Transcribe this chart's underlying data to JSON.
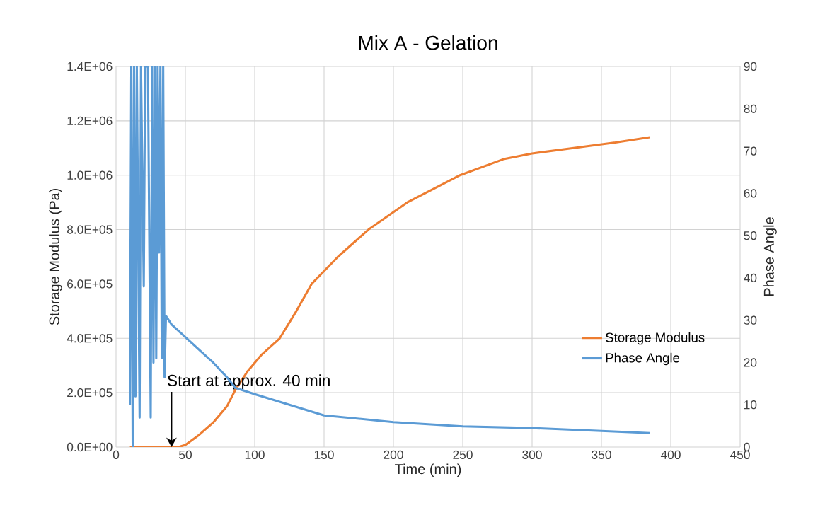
{
  "chart_data": {
    "type": "line",
    "title": "Mix A - Gelation",
    "xlabel": "Time (min)",
    "ylabel": "Storage Modulus (Pa)",
    "y2label": "Phase Angle",
    "xlim": [
      0,
      450
    ],
    "xticks": [
      0,
      50,
      100,
      150,
      200,
      250,
      300,
      350,
      400,
      450
    ],
    "ylim": [
      0,
      1400000
    ],
    "yticks": [
      {
        "value": 0,
        "label": "0.0E+00"
      },
      {
        "value": 200000,
        "label": "2.0E+05"
      },
      {
        "value": 400000,
        "label": "4.0E+05"
      },
      {
        "value": 600000,
        "label": "6.0E+05"
      },
      {
        "value": 800000,
        "label": "8.0E+05"
      },
      {
        "value": 1000000,
        "label": "1.0E+06"
      },
      {
        "value": 1200000,
        "label": "1.2E+06"
      },
      {
        "value": 1400000,
        "label": "1.4E+06"
      }
    ],
    "y2lim": [
      0,
      90
    ],
    "y2ticks": [
      0,
      10,
      20,
      30,
      40,
      50,
      60,
      70,
      80,
      90
    ],
    "grid": true,
    "legend": "right",
    "annotations": [
      {
        "text": "Start at approx. 40 min",
        "x": 40,
        "y": 0
      }
    ],
    "series": [
      {
        "name": "Storage Modulus",
        "color": "#ed7d31",
        "x": [
          10,
          45,
          50,
          60,
          70,
          80,
          86,
          95,
          105,
          118,
          130,
          141,
          160,
          182,
          210,
          248,
          280,
          300,
          330,
          360,
          385
        ],
        "values": [
          0,
          0,
          8000,
          45000,
          90000,
          150000,
          210000,
          280000,
          340000,
          400000,
          500000,
          600000,
          700000,
          800000,
          900000,
          1000000,
          1060000,
          1080000,
          1100000,
          1120000,
          1140000
        ]
      },
      {
        "name": "Phase Angle",
        "color": "#5b9bd5",
        "axis": "y2",
        "x": [
          10,
          11,
          12,
          13,
          14,
          15,
          17,
          18,
          20,
          21,
          23,
          25,
          26,
          27,
          28,
          29,
          30,
          31,
          32,
          33,
          34,
          35,
          36,
          40,
          50,
          60,
          70,
          80,
          86,
          100,
          125,
          150,
          200,
          250,
          300,
          350,
          385
        ],
        "values": [
          10,
          90,
          0,
          90,
          12,
          90,
          7,
          90,
          38,
          90,
          90,
          7,
          90,
          20,
          90,
          21,
          90,
          46,
          90,
          21,
          90,
          16.5,
          31,
          29,
          26,
          23,
          20,
          16.5,
          14,
          12.5,
          10,
          7.5,
          5.9,
          4.9,
          4.5,
          3.8,
          3.3
        ]
      }
    ]
  }
}
